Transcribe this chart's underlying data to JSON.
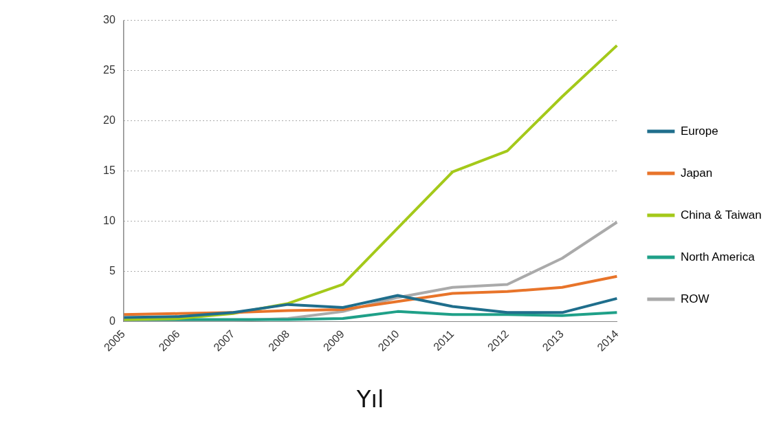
{
  "chart_data": {
    "type": "line",
    "xlabel": "Yıl",
    "categories": [
      "2005",
      "2006",
      "2007",
      "2008",
      "2009",
      "2010",
      "2011",
      "2012",
      "2013",
      "2014"
    ],
    "series": [
      {
        "name": "Europe",
        "color": "#1f6e8c",
        "values": [
          0.4,
          0.5,
          0.9,
          1.7,
          1.4,
          2.6,
          1.5,
          0.9,
          0.9,
          2.3
        ]
      },
      {
        "name": "Japan",
        "color": "#e8742a",
        "values": [
          0.7,
          0.8,
          0.9,
          1.1,
          1.2,
          2.0,
          2.8,
          3.0,
          3.4,
          4.5
        ]
      },
      {
        "name": "China & Taiwan",
        "color": "#a4c91a",
        "values": [
          0.2,
          0.3,
          0.8,
          1.8,
          3.7,
          9.3,
          14.9,
          17.0,
          22.4,
          27.5
        ]
      },
      {
        "name": "North America",
        "color": "#1fa088",
        "values": [
          0.2,
          0.2,
          0.2,
          0.2,
          0.3,
          1.0,
          0.7,
          0.7,
          0.6,
          0.9
        ]
      },
      {
        "name": "ROW",
        "color": "#aaaaaa",
        "values": [
          0.1,
          0.1,
          0.1,
          0.3,
          1.0,
          2.4,
          3.4,
          3.7,
          6.3,
          9.9
        ]
      }
    ],
    "ylim": [
      0,
      30
    ],
    "yticks": [
      0,
      5,
      10,
      15,
      20,
      25,
      30
    ],
    "grid": "y",
    "legend": "right",
    "marker": "none",
    "line_style": "solid"
  }
}
